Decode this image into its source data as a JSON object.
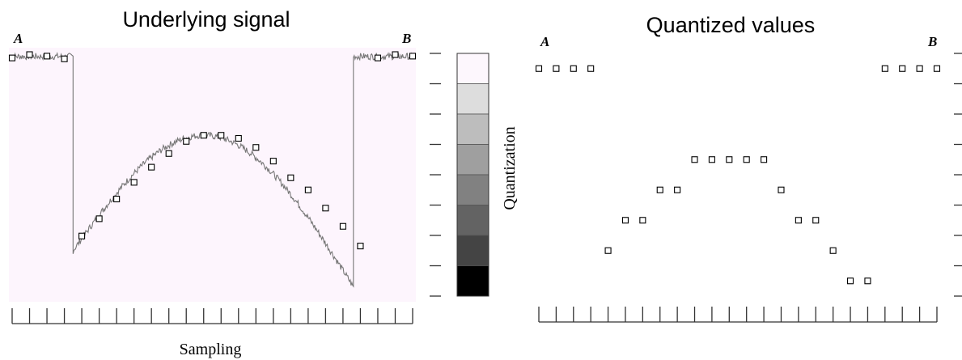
{
  "left_panel": {
    "title": "Underlying signal",
    "label_start": "A",
    "label_end": "B",
    "x_axis_label": "Sampling"
  },
  "right_panel": {
    "title": "Quantized values",
    "label_start": "A",
    "label_end": "B"
  },
  "quantization_bar": {
    "label": "Quantization",
    "shades": [
      "#fdf7fd",
      "#dddddd",
      "#bdbdbd",
      "#9f9f9f",
      "#818181",
      "#636363",
      "#444444",
      "#000000"
    ]
  },
  "colors": {
    "signal_background": "#fdf5fd",
    "signal_line": "#777777",
    "axis": "#333333",
    "marker_fill": "#ffffff",
    "marker_stroke": "#000000"
  },
  "chart_data": {
    "type": "scatter",
    "quantization_levels": 8,
    "sample_count": 24,
    "x_range": [
      0,
      23
    ],
    "y_range": [
      0,
      8
    ],
    "signal_true": [
      7.85,
      7.96,
      7.91,
      7.82,
      1.98,
      2.55,
      3.2,
      3.75,
      4.25,
      4.7,
      5.1,
      5.3,
      5.3,
      5.2,
      4.9,
      4.45,
      3.9,
      3.5,
      2.9,
      2.3,
      1.65,
      7.85,
      7.96,
      7.91
    ],
    "quantized_values": [
      7.5,
      7.5,
      7.5,
      7.5,
      1.5,
      2.5,
      2.5,
      3.5,
      3.5,
      4.5,
      4.5,
      4.5,
      4.5,
      4.5,
      3.5,
      2.5,
      2.5,
      1.5,
      0.5,
      0.5,
      7.5,
      7.5,
      7.5,
      7.5
    ],
    "signal_segments": [
      {
        "x_start": -0.15,
        "x_end": 3.5,
        "kind": "flat",
        "level": 7.9
      },
      {
        "x_start": 3.5,
        "x_end": 19.6,
        "kind": "arch",
        "start": 1.5,
        "peak": 5.3,
        "peak_x": 11,
        "end": 0.3
      },
      {
        "x_start": 19.6,
        "x_end": 23.15,
        "kind": "flat",
        "level": 7.9
      }
    ]
  }
}
